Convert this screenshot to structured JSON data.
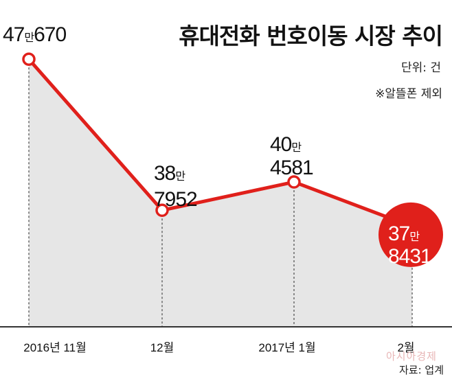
{
  "title": "휴대전화 번호이동 시장 추이",
  "unit_text": "단위: 건",
  "note_text": "※알뜰폰 제외",
  "source_text": "자료: 업계",
  "watermark_text": "아시아경제",
  "colors": {
    "line": "#e0201b",
    "area": "#e6e6e6",
    "highlight": "#e0201b",
    "axis": "#333333"
  },
  "chart_data": {
    "type": "line",
    "title": "휴대전화 번호이동 시장 추이",
    "x_labels": [
      "2016년 11월",
      "12월",
      "2017년 1월",
      "2월"
    ],
    "values": [
      476670,
      387952,
      404581,
      378431
    ],
    "data_labels": [
      {
        "man": "47",
        "unit": "만",
        "rest": "670"
      },
      {
        "man": "38",
        "unit": "만",
        "rest": "7952"
      },
      {
        "man": "40",
        "unit": "만",
        "rest": "4581"
      },
      {
        "man": "37",
        "unit": "만",
        "rest": "8431"
      }
    ],
    "ylim": [
      330000,
      480000
    ],
    "grid": false
  }
}
